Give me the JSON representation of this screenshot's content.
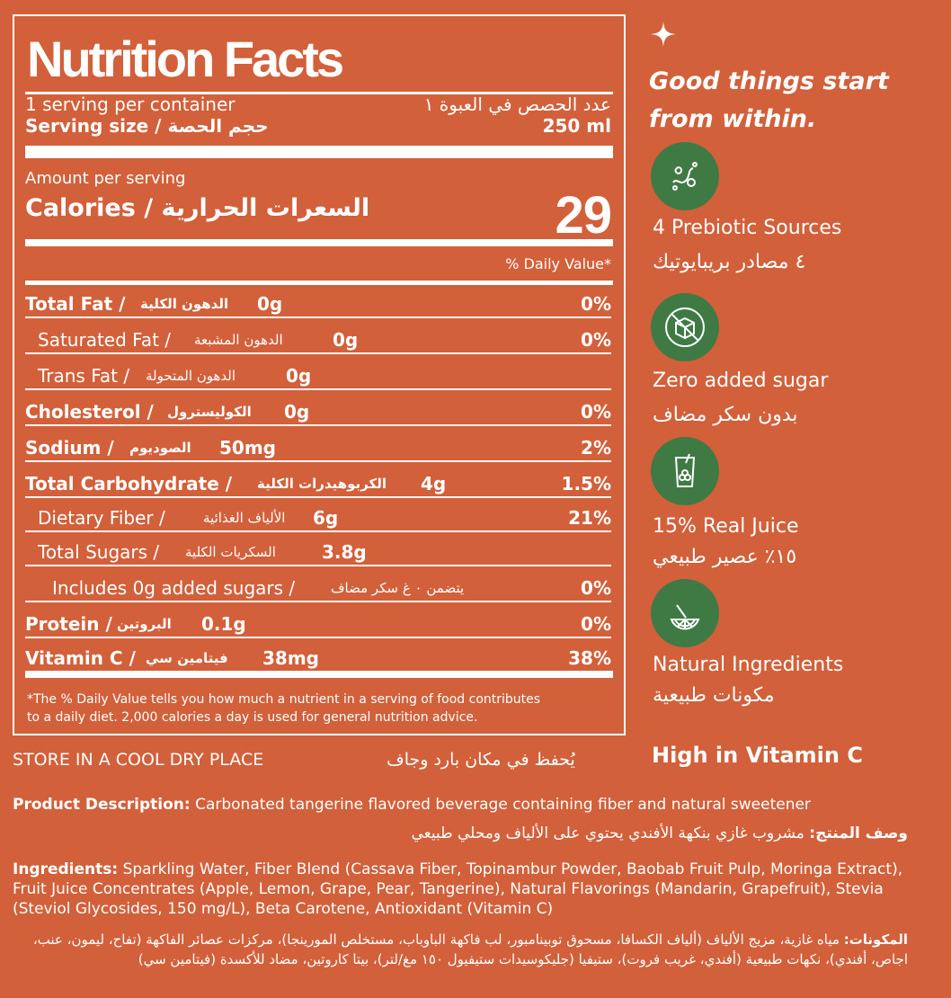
{
  "label": {
    "title": "Nutrition Facts",
    "servings_en": "1 serving per container",
    "servings_ar": "عدد الحصص في العبوة ١",
    "serving_size_en": "Serving size / حجم الحصة",
    "serving_size_value": "250 ml",
    "amount_per_serving": "Amount per serving",
    "calories_en": "Calories / السعرات الحرارية",
    "calories_value": "29",
    "daily_value_header": "% Daily Value*",
    "nutrients": [
      {
        "name": "Total Fat /",
        "ar": "الدهون الكلية",
        "amount": "0g",
        "pct": "0%"
      },
      {
        "name": "Saturated Fat /",
        "ar": "الدهون المشبعة",
        "amount": "0g",
        "pct": "0%"
      },
      {
        "name": "Trans Fat /",
        "ar": "الدهون المتحولة",
        "amount": "0g",
        "pct": ""
      },
      {
        "name": "Cholesterol /",
        "ar": "الكوليسترول",
        "amount": "0g",
        "pct": "0%"
      },
      {
        "name": "Sodium /",
        "ar": "الصوديوم",
        "amount": "50mg",
        "pct": "2%"
      },
      {
        "name": "Total Carbohydrate /",
        "ar": "الكربوهيدرات الكلية",
        "amount": "4g",
        "pct": "1.5%"
      },
      {
        "name": "Dietary Fiber /",
        "ar": "الألياف الغذائية",
        "amount": "6g",
        "pct": "21%"
      },
      {
        "name": "Total Sugars /",
        "ar": "السكريات الكلية",
        "amount": "3.8g",
        "pct": ""
      },
      {
        "name": "Includes 0g added sugars /",
        "ar": "يتضمن ٠ غ سكر مضاف",
        "amount": "",
        "pct": "0%"
      },
      {
        "name": "Protein /",
        "ar": "البروتين",
        "amount": "0.1g",
        "pct": "0%"
      },
      {
        "name": "Vitamin C /",
        "ar": "فيتامين سي",
        "amount": "38mg",
        "pct": "38%"
      }
    ],
    "footnote_line1": "*The % Daily Value tells you how much a nutrient in a serving of food contributes",
    "footnote_line2": "to a daily diet. 2,000 calories a day is used for general nutrition advice."
  },
  "side": {
    "tagline_line1": "Good things start",
    "tagline_line2": "from within.",
    "features": [
      {
        "icon": "prebiotic-icon",
        "en": "4 Prebiotic Sources",
        "ar": "٤ مصادر بريبايوتيك"
      },
      {
        "icon": "no-sugar-icon",
        "en": "Zero added sugar",
        "ar": "بدون سكر مضاف"
      },
      {
        "icon": "juice-glass-icon",
        "en": "15% Real Juice",
        "ar": "١٥٪ عصير طبيعي"
      },
      {
        "icon": "citrus-slice-icon",
        "en": "Natural Ingredients",
        "ar": "مكونات طبيعية"
      }
    ],
    "high_in": "High in Vitamin C"
  },
  "storage": {
    "en": "STORE IN A COOL DRY PLACE",
    "ar": "يُحفظ في مكان بارد وجاف"
  },
  "description": {
    "label_en": "Product Description:",
    "text_en": " Carbonated tangerine flavored beverage containing fiber and natural sweetener",
    "label_ar": "وصف المنتج:",
    "text_ar": " مشروب غازي بنكهة الأفندي يحتوي على الألياف ومحلي طبيعي"
  },
  "ingredients": {
    "label_en": "Ingredients:",
    "text_en": " Sparkling Water, Fiber Blend (Cassava Fiber, Topinambur Powder, Baobab Fruit Pulp, Moringa Extract), Fruit Juice Concentrates (Apple, Lemon, Grape, Pear, Tangerine), Natural Flavorings (Mandarin, Grapefruit), Stevia (Steviol Glycosides, 150 mg/L), Beta Carotene, Antioxidant (Vitamin C)",
    "label_ar": "المكونات:",
    "text_ar": " مياه غازية، مزيج الألياف (ألياف الكسافا، مسحوق توبينامبور، لب فاكهة الباوباب، مستخلص المورينجا)، مركزات عصائر الفاكهة (تفاح، ليمون، عنب، اجاص، أفندي)، نكهات طبيعية (أفندي، غريب فروت)، ستيفيا (جليكوسيدات ستيفيول ١٥٠ مغ/لتر)، بيتا كاروتين، مضاد للأكسدة (فيتامين سي)"
  },
  "colors": {
    "background": "#D2603A",
    "badge": "#3F7A44",
    "text": "#FFFFFF"
  }
}
